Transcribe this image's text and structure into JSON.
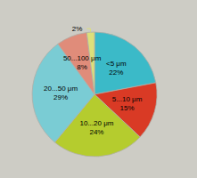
{
  "chart_data": {
    "type": "pie",
    "categories": [
      "<5 μm",
      "5...10 μm",
      "10...20 μm",
      "20...50 μm",
      "50...100 μm",
      null
    ],
    "values": [
      22,
      15,
      24,
      29,
      8,
      2
    ],
    "value_labels": [
      "22%",
      "15%",
      "24%",
      "29%",
      "8%",
      "2%"
    ],
    "colors": [
      "#3bbac8",
      "#d93a25",
      "#b5cc2e",
      "#7accd4",
      "#e08c7a",
      "#dde07a"
    ],
    "data_labels": true
  }
}
